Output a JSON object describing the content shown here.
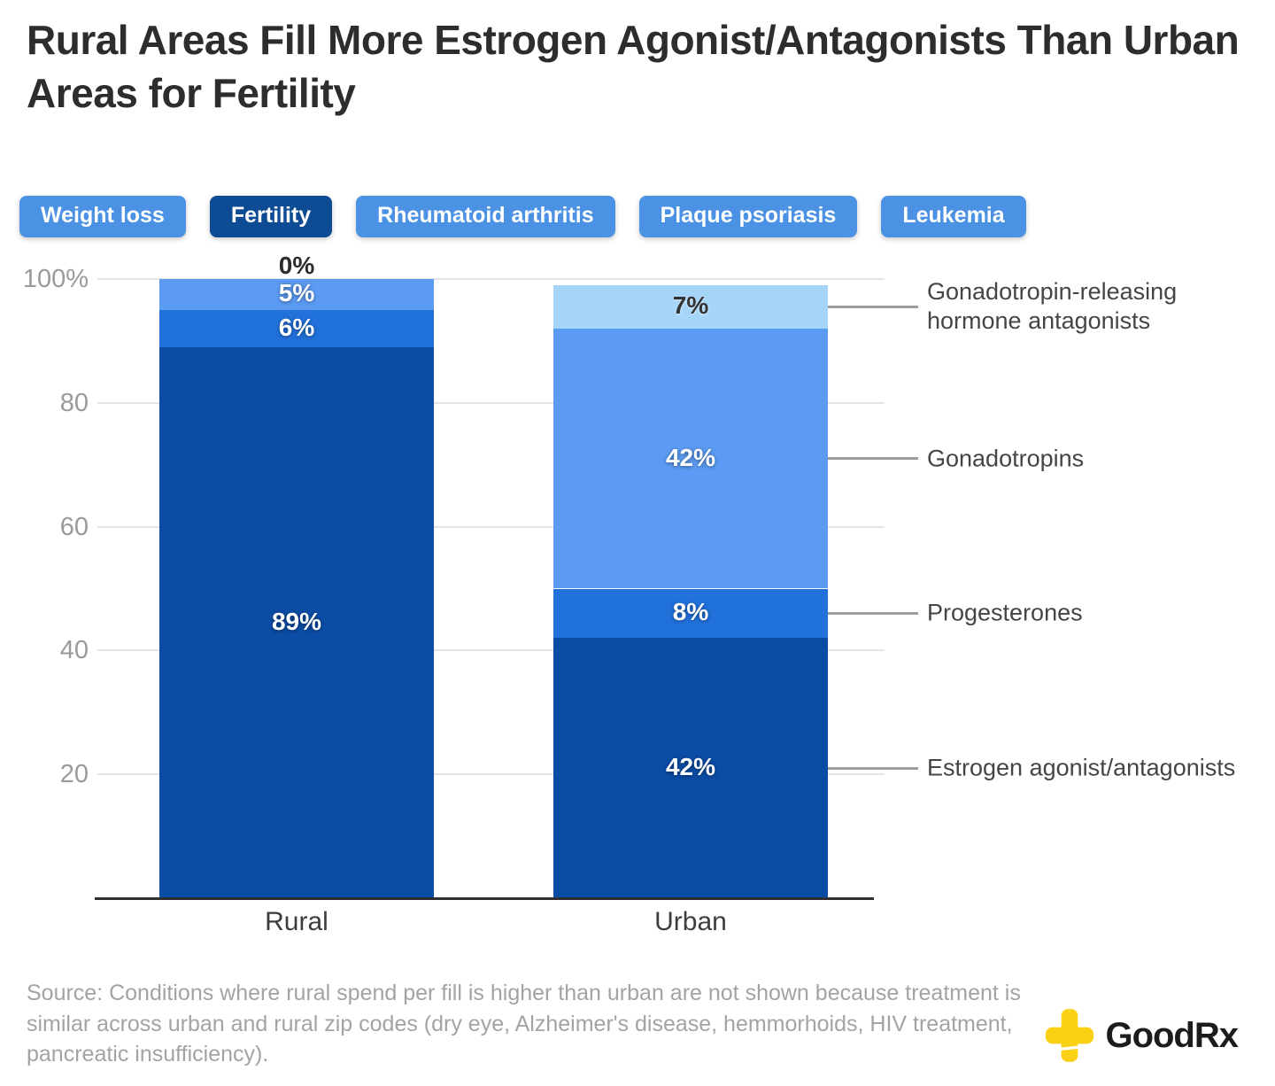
{
  "title": "Rural Areas Fill More Estrogen Agonist/Antagonists Than Urban Areas for Fertility",
  "tabs": [
    {
      "label": "Weight loss",
      "selected": false
    },
    {
      "label": "Fertility",
      "selected": true
    },
    {
      "label": "Rheumatoid arthritis",
      "selected": false
    },
    {
      "label": "Plaque psoriasis",
      "selected": false
    },
    {
      "label": "Leukemia",
      "selected": false
    }
  ],
  "tab_colors": {
    "default_bg": "#4b92e5",
    "selected_bg": "#0d4b94",
    "text": "#ffffff"
  },
  "chart_data": {
    "type": "bar",
    "stacked": true,
    "categories": [
      "Rural",
      "Urban"
    ],
    "series": [
      {
        "name": "Estrogen agonist/antagonists",
        "values": [
          89,
          42
        ],
        "color": "#0b4ca5",
        "label_color": "#ffffff"
      },
      {
        "name": "Progesterones",
        "values": [
          6,
          8
        ],
        "color": "#2171db",
        "label_color": "#ffffff"
      },
      {
        "name": "Gonadotropins",
        "values": [
          5,
          42
        ],
        "color": "#5c9bf3",
        "label_color": "#ffffff"
      },
      {
        "name": "Gonadotropin-releasing hormone antagonists",
        "values": [
          0,
          7
        ],
        "color": "#a6d5fa",
        "label_color": "#333333"
      }
    ],
    "segment_labels": {
      "Rural": [
        "89%",
        "6%",
        "5%",
        "0%"
      ],
      "Urban": [
        "42%",
        "8%",
        "42%",
        "7%"
      ]
    },
    "value_suffix": "%",
    "ylim": [
      0,
      100
    ],
    "yticks": [
      {
        "value": 100,
        "label": "100%"
      },
      {
        "value": 80,
        "label": "80"
      },
      {
        "value": 60,
        "label": "60"
      },
      {
        "value": 40,
        "label": "40"
      },
      {
        "value": 20,
        "label": "20"
      }
    ],
    "grid": true,
    "legend_position": "right",
    "grid_color": "#e4e4e4",
    "axis_color": "#2f2f2f",
    "connector_color": "#9e9e9e"
  },
  "source": "Source: Conditions where rural spend per fill is higher than urban are not shown because treatment is similar across urban and rural zip codes (dry eye, Alzheimer's disease, hemmorhoids, HIV treatment, pancreatic insufficiency).",
  "logo": {
    "text": "GoodRx",
    "icon": "goodrx-cross-icon",
    "icon_color": "#fbd116"
  }
}
